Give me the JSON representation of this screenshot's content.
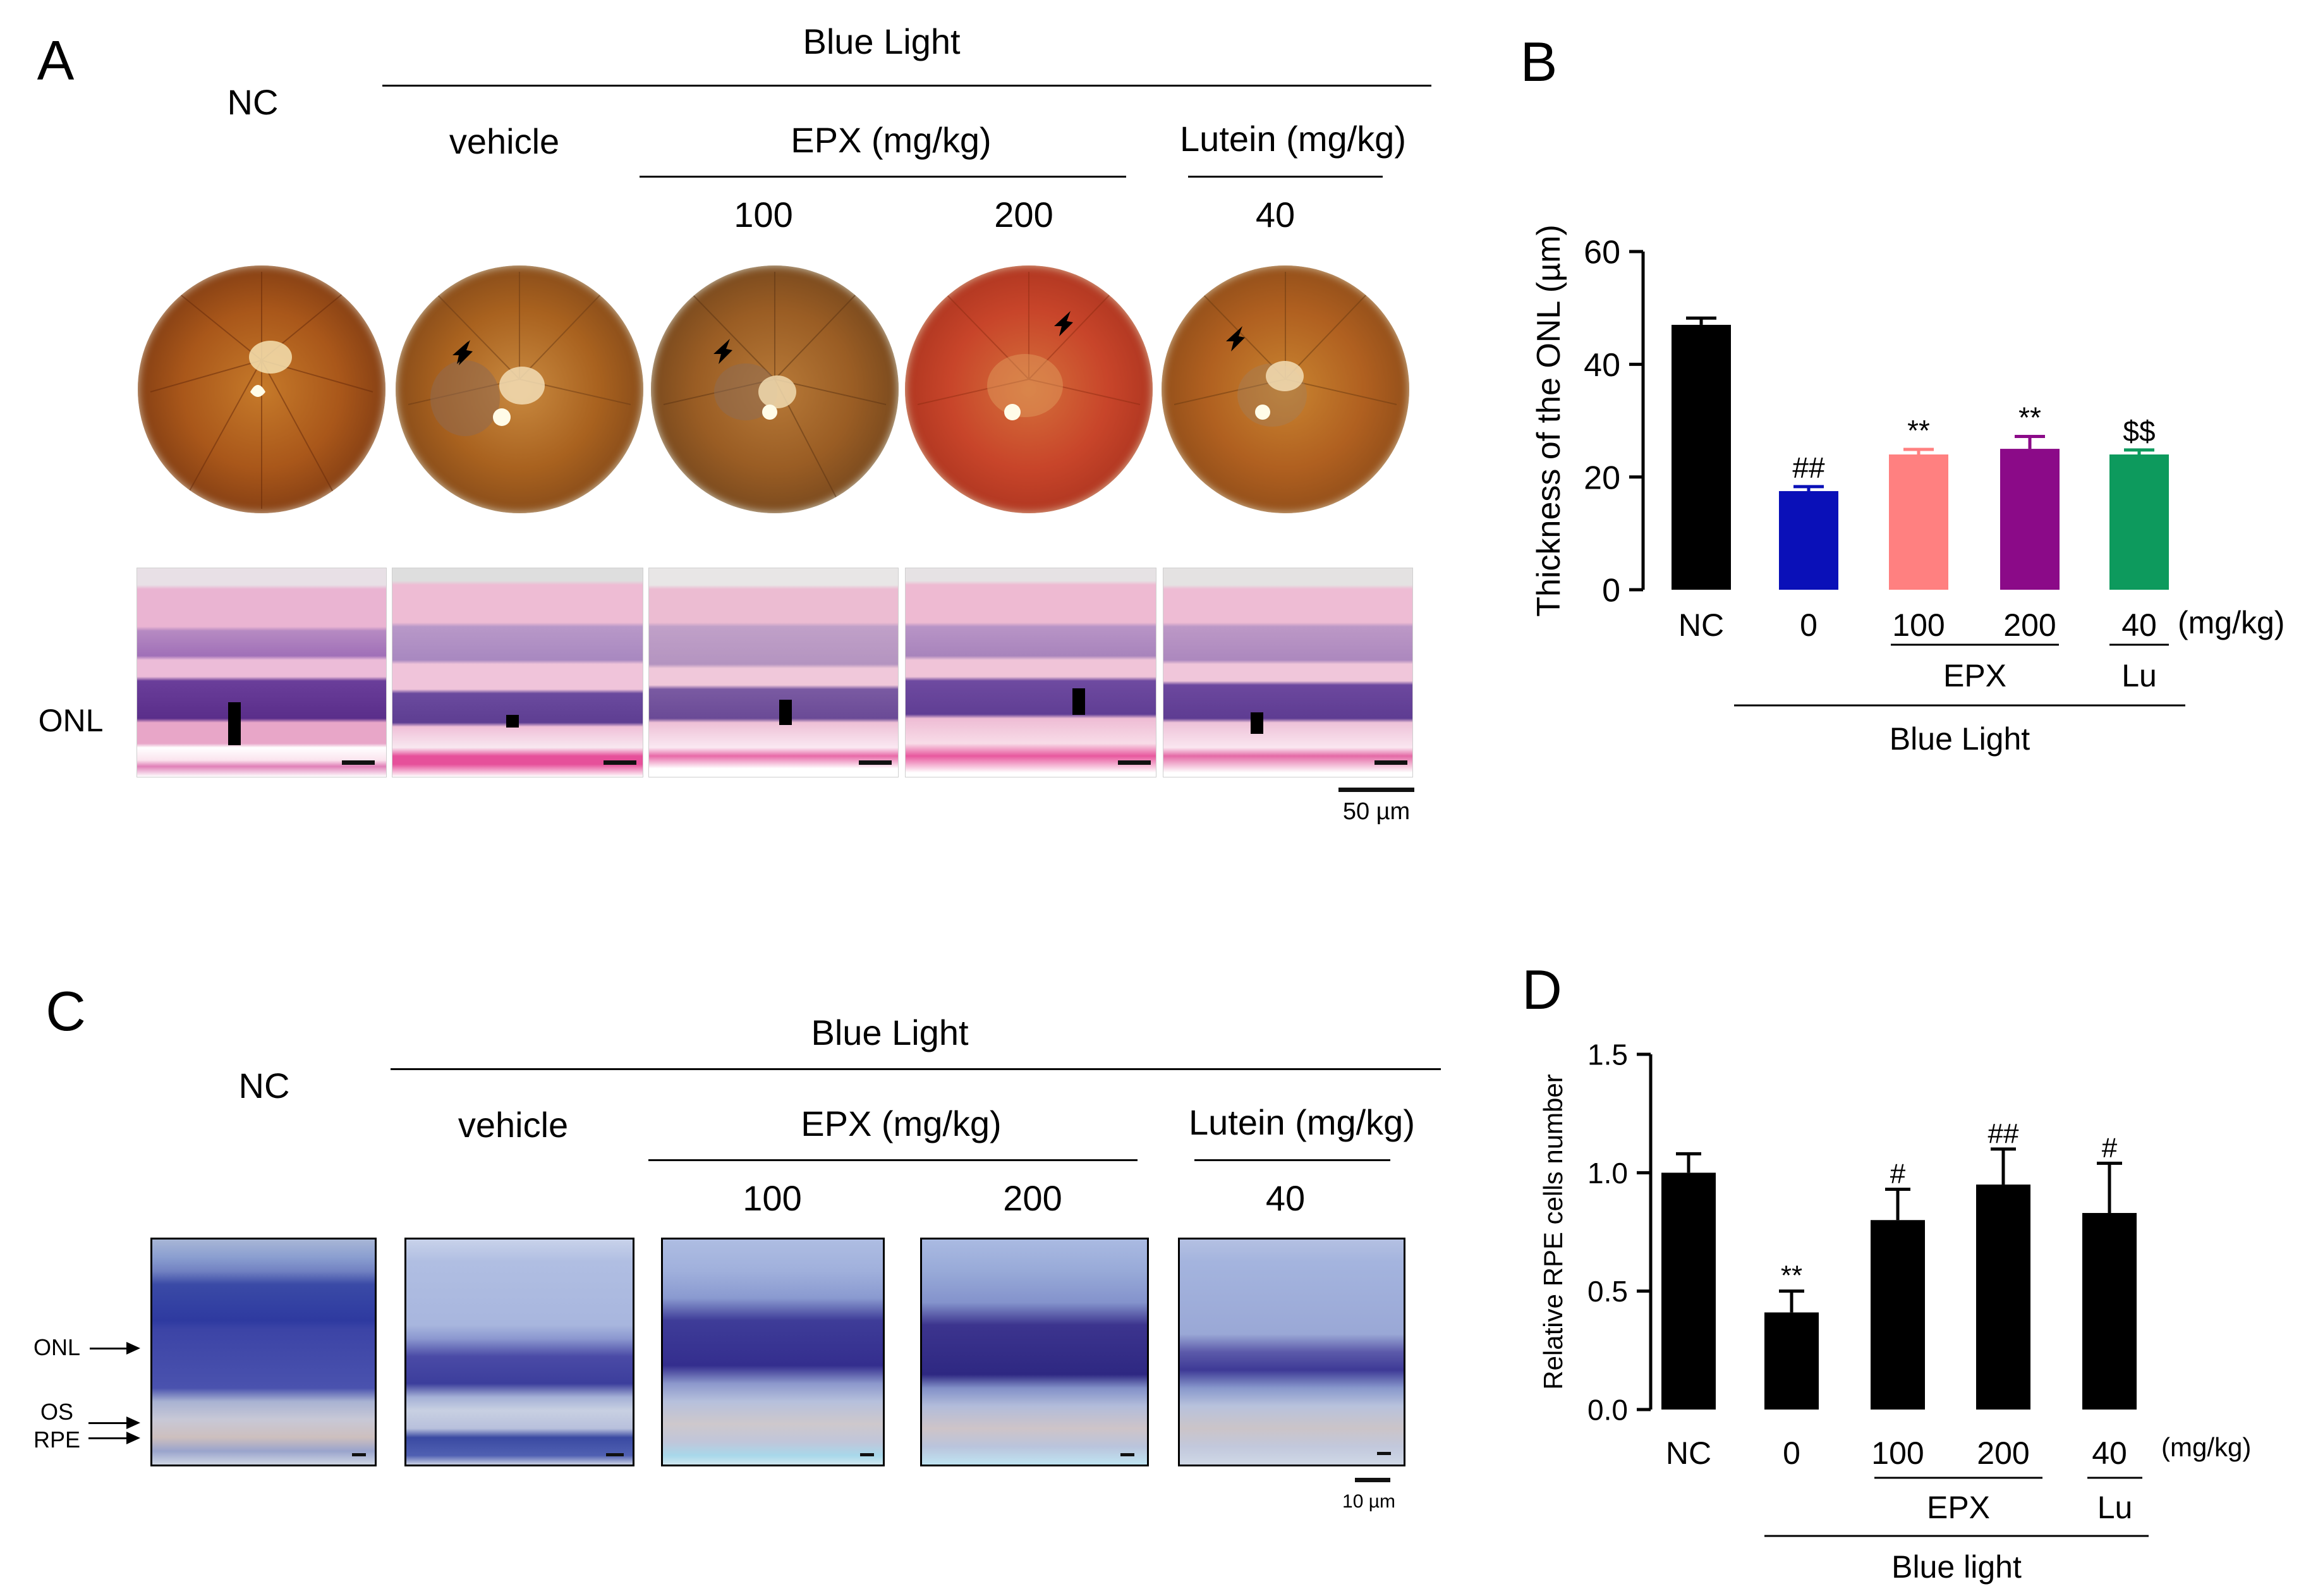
{
  "panels": {
    "A": {
      "letter": "A",
      "nc": "NC",
      "blue_light": "Blue Light",
      "vehicle": "vehicle",
      "epx": "EPX (mg/kg)",
      "lutein": "Lutein (mg/kg)",
      "doses": [
        "100",
        "200",
        "40"
      ],
      "row_label": "ONL",
      "scale": "50 µm"
    },
    "C": {
      "letter": "C",
      "nc": "NC",
      "blue_light": "Blue Light",
      "vehicle": "vehicle",
      "epx": "EPX (mg/kg)",
      "lutein": "Lutein (mg/kg)",
      "doses": [
        "100",
        "200",
        "40"
      ],
      "layers": [
        "ONL",
        "OS",
        "RPE"
      ],
      "scale": "10 µm"
    }
  },
  "colors": {
    "nc": "#000000",
    "vehicle": "#0a10b8",
    "epx100": "#ff8080",
    "epx200": "#8b0a88",
    "lutein": "#0d9a5d"
  },
  "chart_data": [
    {
      "panel": "B",
      "type": "bar",
      "ylabel": "Thickness of the ONL (µm)",
      "ylim": [
        0,
        60
      ],
      "yticks": [
        0,
        20,
        40,
        60
      ],
      "categories": [
        "NC",
        "0",
        "100",
        "200",
        "40"
      ],
      "values": [
        47,
        17.5,
        24,
        25,
        24
      ],
      "errors": [
        1.2,
        0.8,
        0.9,
        2.2,
        0.8
      ],
      "annotations": [
        "",
        "##",
        "**",
        "**",
        "$$"
      ],
      "unit_label": "(mg/kg)",
      "group_labels": [
        "EPX",
        "Lu"
      ],
      "treatment_label": "Blue Light"
    },
    {
      "panel": "D",
      "type": "bar",
      "ylabel": "Relative RPE cells number",
      "ylim": [
        0,
        1.5
      ],
      "yticks": [
        "0.0",
        "0.5",
        "1.0",
        "1.5"
      ],
      "categories": [
        "NC",
        "0",
        "100",
        "200",
        "40"
      ],
      "values": [
        1.0,
        0.41,
        0.8,
        0.95,
        0.83
      ],
      "errors": [
        0.08,
        0.09,
        0.13,
        0.15,
        0.21
      ],
      "annotations": [
        "",
        "**",
        "#",
        "##",
        "#"
      ],
      "unit_label": "(mg/kg)",
      "group_labels": [
        "EPX",
        "Lu"
      ],
      "treatment_label": "Blue light"
    }
  ]
}
